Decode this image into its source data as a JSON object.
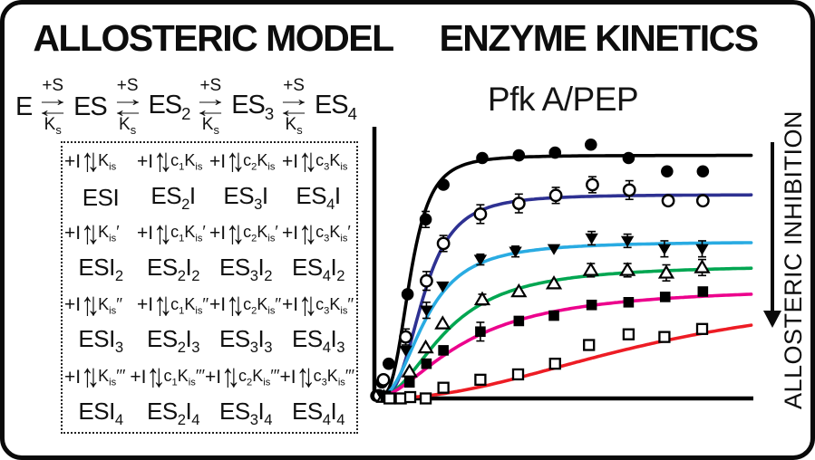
{
  "figure": {
    "left": {
      "title": "ALLOSTERIC MODEL",
      "reaction": {
        "species": [
          "E",
          "ES",
          "ES~2~",
          "ES~3~",
          "ES~4~"
        ],
        "forward_label": "+S",
        "reverse_label": "K~s~"
      },
      "grid": {
        "plus": "+I",
        "binding_rows": [
          [
            "K~is~",
            "c~1~K~is~",
            "c~2~K~is~",
            "c~3~K~is~"
          ],
          [
            "K~is~′",
            "c~1~K~is~′",
            "c~2~K~is~′",
            "c~3~K~is~′"
          ],
          [
            "K~is~′′",
            "c~1~K~is~′′",
            "c~2~K~is~′′",
            "c~3~K~is~′′"
          ],
          [
            "K~is~′′′",
            "c~1~K~is~′′′",
            "c~2~K~is~′′′",
            "c~3~K~is~′′′"
          ]
        ],
        "complex_rows": [
          [
            "ESI",
            "ES~2~I",
            "ES~3~I",
            "ES~4~I"
          ],
          [
            "ESI~2~",
            "ES~2~I~2~",
            "ES~3~I~2~",
            "ES~4~I~2~"
          ],
          [
            "ESI~3~",
            "ES~2~I~3~",
            "ES~3~I~3~",
            "ES~4~I~3~"
          ],
          [
            "ESI~4~",
            "ES~2~I~4~",
            "ES~3~I~4~",
            "ES~4~I~4~"
          ]
        ]
      }
    },
    "right": {
      "title": "ENZYME KINETICS",
      "side_label": "ALLOSTERIC INHIBITION"
    }
  },
  "icons": {
    "eq_forward_arrow": "→",
    "eq_reverse_arrow": "←",
    "up_down_arrows": "↑↓"
  },
  "chart_data": {
    "type": "scatter",
    "title": "Pfk A/PEP",
    "xlabel": "",
    "ylabel": "",
    "axes_ticks": [],
    "x_range": [
      0,
      1
    ],
    "y_range": [
      0,
      1
    ],
    "grid": false,
    "legend": "none",
    "marker_color": "#000000",
    "series": [
      {
        "marker": "circle-filled",
        "color": "#000000",
        "curve": {
          "ymax": 0.91,
          "k": 0.095,
          "n": 3.5
        },
        "points": [
          [
            0.005,
            0.01
          ],
          [
            0.02,
            0.06
          ],
          [
            0.038,
            0.13
          ],
          [
            0.088,
            0.39
          ],
          [
            0.136,
            0.67
          ],
          [
            0.183,
            0.8
          ],
          [
            0.286,
            0.9
          ],
          [
            0.383,
            0.91
          ],
          [
            0.479,
            0.92
          ],
          [
            0.574,
            0.95
          ],
          [
            0.674,
            0.9
          ],
          [
            0.776,
            0.85
          ],
          [
            0.871,
            0.85
          ]
        ],
        "err": [
          0,
          0,
          0,
          0,
          0.03,
          0,
          0,
          0,
          0,
          0,
          0,
          0,
          0
        ]
      },
      {
        "marker": "circle-open",
        "color": "#2e3192",
        "curve": {
          "ymax": 0.763,
          "k": 0.13,
          "n": 3.2
        },
        "points": [
          [
            0.012,
            0.01
          ],
          [
            0.024,
            0.07
          ],
          [
            0.083,
            0.23
          ],
          [
            0.138,
            0.44
          ],
          [
            0.183,
            0.58
          ],
          [
            0.281,
            0.69
          ],
          [
            0.383,
            0.73
          ],
          [
            0.481,
            0.76
          ],
          [
            0.578,
            0.8
          ],
          [
            0.676,
            0.78
          ],
          [
            0.779,
            0.74
          ],
          [
            0.871,
            0.74
          ]
        ],
        "err": [
          0,
          0,
          0.03,
          0.035,
          0.03,
          0.035,
          0.035,
          0.03,
          0.03,
          0.035,
          0,
          0
        ]
      },
      {
        "marker": "triangle-down-filled",
        "color": "#29abe2",
        "curve": {
          "ymax": 0.587,
          "k": 0.135,
          "n": 2.5
        },
        "points": [
          [
            0.02,
            0.01
          ],
          [
            0.083,
            0.18
          ],
          [
            0.138,
            0.33
          ],
          [
            0.181,
            0.42
          ],
          [
            0.281,
            0.52
          ],
          [
            0.374,
            0.55
          ],
          [
            0.476,
            0.56
          ],
          [
            0.576,
            0.6
          ],
          [
            0.671,
            0.59
          ],
          [
            0.769,
            0.56
          ],
          [
            0.869,
            0.56
          ]
        ],
        "err": [
          0,
          0,
          0.03,
          0,
          0.02,
          0.02,
          0,
          0.025,
          0.025,
          0.03,
          0.03
        ]
      },
      {
        "marker": "triangle-up-open",
        "color": "#00a651",
        "curve": {
          "ymax": 0.5,
          "k": 0.19,
          "n": 2.2
        },
        "points": [
          [
            0.025,
            0.005
          ],
          [
            0.093,
            0.1
          ],
          [
            0.136,
            0.19
          ],
          [
            0.181,
            0.28
          ],
          [
            0.286,
            0.37
          ],
          [
            0.383,
            0.4
          ],
          [
            0.476,
            0.43
          ],
          [
            0.574,
            0.48
          ],
          [
            0.671,
            0.48
          ],
          [
            0.774,
            0.47
          ],
          [
            0.869,
            0.49
          ]
        ],
        "err": [
          0,
          0,
          0,
          0,
          0.02,
          0,
          0,
          0.025,
          0.025,
          0.03,
          0.03
        ]
      },
      {
        "marker": "square-filled",
        "color": "#ec008c",
        "curve": {
          "ymax": 0.42,
          "k": 0.24,
          "n": 1.8
        },
        "points": [
          [
            0.03,
            0.01
          ],
          [
            0.093,
            0.06
          ],
          [
            0.138,
            0.13
          ],
          [
            0.183,
            0.18
          ],
          [
            0.281,
            0.25
          ],
          [
            0.383,
            0.29
          ],
          [
            0.476,
            0.31
          ],
          [
            0.576,
            0.35
          ],
          [
            0.674,
            0.36
          ],
          [
            0.771,
            0.38
          ],
          [
            0.871,
            0.4
          ]
        ],
        "err": [
          0,
          0,
          0,
          0,
          0.035,
          0,
          0,
          0,
          0,
          0,
          0
        ]
      },
      {
        "marker": "square-open",
        "color": "#ed1c24",
        "curve": {
          "ymax": 0.42,
          "k": 0.75,
          "n": 2.2
        },
        "points": [
          [
            0.04,
            0.0
          ],
          [
            0.07,
            0.0
          ],
          [
            0.095,
            0.005
          ],
          [
            0.136,
            0.0
          ],
          [
            0.183,
            0.04
          ],
          [
            0.281,
            0.07
          ],
          [
            0.381,
            0.09
          ],
          [
            0.479,
            0.13
          ],
          [
            0.569,
            0.2
          ],
          [
            0.674,
            0.24
          ],
          [
            0.769,
            0.23
          ],
          [
            0.869,
            0.26
          ]
        ],
        "err": [
          0,
          0,
          0,
          0,
          0,
          0,
          0,
          0,
          0,
          0,
          0,
          0
        ]
      }
    ]
  }
}
